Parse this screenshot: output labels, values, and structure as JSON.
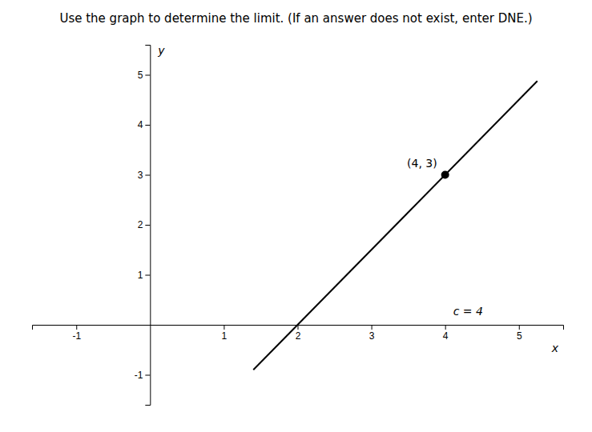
{
  "chart_data": {
    "type": "line",
    "title": "Use the graph to determine the limit. (If an answer does not exist, enter DNE.)",
    "xlabel": "x",
    "ylabel": "y",
    "xlim": [
      -1.6,
      5.6
    ],
    "ylim": [
      -1.6,
      5.6
    ],
    "xticks": [
      -1,
      1,
      2,
      3,
      4,
      5
    ],
    "yticks": [
      -1,
      1,
      2,
      3,
      4,
      5
    ],
    "grid": false,
    "series": [
      {
        "type": "line",
        "color": "#000000",
        "x": [
          1.4,
          5.25
        ],
        "values": [
          -0.9,
          4.875
        ]
      },
      {
        "type": "scatter",
        "color": "#000000",
        "marker": "circle",
        "x": [
          4
        ],
        "values": [
          3
        ]
      }
    ],
    "annotations": [
      "(4, 3)",
      "c = 4"
    ]
  }
}
